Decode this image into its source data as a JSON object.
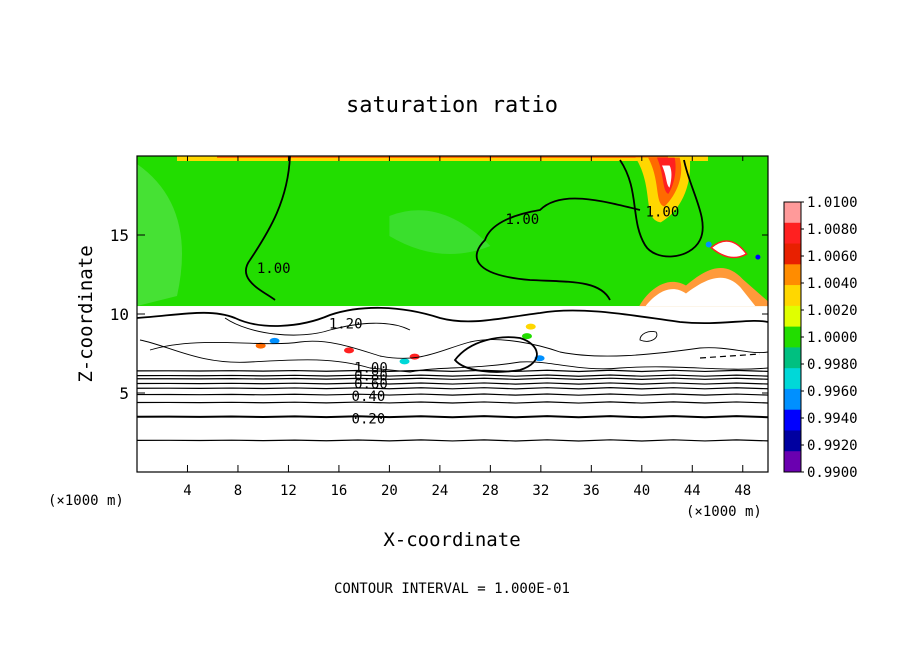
{
  "chart_data": {
    "type": "heatmap",
    "title": "saturation ratio",
    "xlabel": "X-coordinate",
    "ylabel": "Z-coordinate",
    "x_unit_left": "(×1000 m)",
    "x_unit_right": "(×1000 m)",
    "footer": "CONTOUR INTERVAL = 1.000E-01",
    "xlim": [
      0,
      50
    ],
    "ylim": [
      0,
      20
    ],
    "x_ticks": [
      4,
      8,
      12,
      16,
      20,
      24,
      28,
      32,
      36,
      40,
      44,
      48
    ],
    "y_ticks": [
      5,
      10,
      15
    ],
    "colorbar": {
      "levels": [
        "1.0100",
        "1.0080",
        "1.0060",
        "1.0040",
        "1.0020",
        "1.0000",
        "0.9980",
        "0.9960",
        "0.9940",
        "0.9920",
        "0.9900"
      ],
      "colors": [
        "#ff9a9a",
        "#ff2020",
        "#e82000",
        "#ff8c00",
        "#ffd700",
        "#e0ff00",
        "#22dd00",
        "#00c080",
        "#00d8d8",
        "#0090ff",
        "#0000ff",
        "#0000a0",
        "#6a00b0"
      ]
    },
    "field_regions": [
      {
        "region": "upper layer (z ≈ 10.5–20)",
        "value": 1.0,
        "color": "#22dd00"
      },
      {
        "region": "lower layer (z < 10.5)",
        "value": "below colour range (white)",
        "color": "#ffffff"
      }
    ],
    "contour_labels": [
      {
        "text": "1.00",
        "x": 9.5,
        "z": 12.9
      },
      {
        "text": "1.00",
        "x": 29.2,
        "z": 16.0
      },
      {
        "text": "1.00",
        "x": 40.3,
        "z": 16.5
      },
      {
        "text": "1.20",
        "x": 15.2,
        "z": 9.4
      },
      {
        "text": "1.00",
        "x": 17.2,
        "z": 6.6
      },
      {
        "text": "0.80",
        "x": 17.2,
        "z": 6.1
      },
      {
        "text": "0.60",
        "x": 17.2,
        "z": 5.6
      },
      {
        "text": "0.40",
        "x": 17.0,
        "z": 4.8
      },
      {
        "text": "0.20",
        "x": 17.0,
        "z": 3.4
      }
    ],
    "horizontal_contours_z": [
      2.0,
      3.5,
      4.4,
      4.9,
      5.3,
      5.6,
      5.9,
      6.1,
      6.4
    ],
    "boundary_z": 10.5,
    "grid": false
  }
}
